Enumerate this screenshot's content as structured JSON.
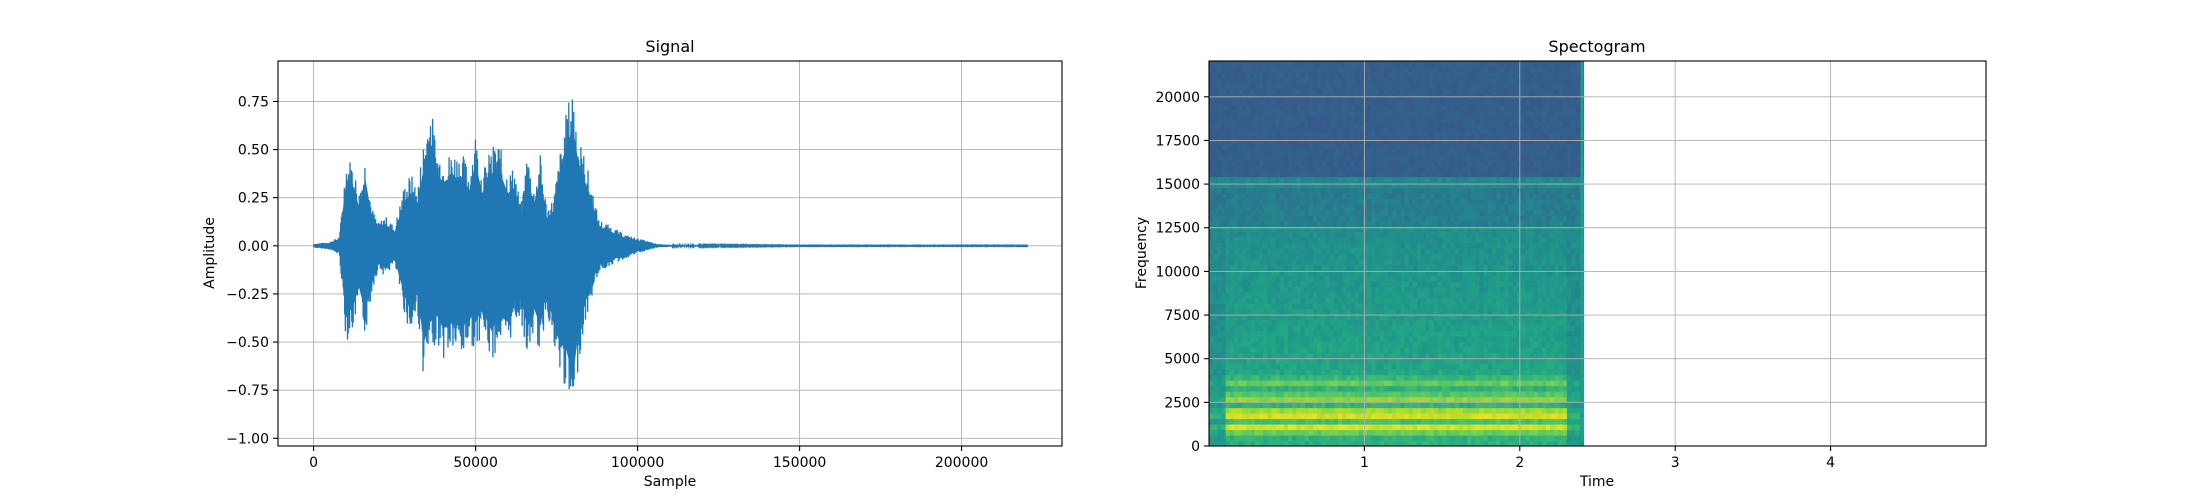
{
  "chart_data": [
    {
      "type": "line",
      "title": "Signal",
      "xlabel": "Sample",
      "ylabel": "Amplitude",
      "xlim": [
        -11000,
        231000
      ],
      "ylim": [
        -1.04,
        0.96
      ],
      "x_ticks": [
        0,
        50000,
        100000,
        150000,
        200000
      ],
      "x_tick_labels": [
        "0",
        "50000",
        "100000",
        "150000",
        "200000"
      ],
      "y_ticks": [
        0.75,
        0.5,
        0.25,
        0.0,
        -0.25,
        -0.5,
        -0.75,
        -1.0
      ],
      "y_tick_labels": [
        "0.75",
        "0.50",
        "0.25",
        "0.00",
        "−0.25",
        "−0.50",
        "−0.75",
        "−1.00"
      ],
      "grid": true,
      "color": "#1f77b4",
      "series": [
        {
          "x": [
            0,
            5000,
            8000,
            10000,
            12000,
            14000,
            16000,
            18000,
            20000,
            22000,
            25000,
            28000,
            30000,
            32000,
            34000,
            36000,
            38000,
            40000,
            43000,
            46000,
            48000,
            50000,
            52000,
            55000,
            57000,
            60000,
            62000,
            64000,
            66000,
            68000,
            70000,
            72000,
            74000,
            76000,
            78000,
            80000,
            82000,
            84000,
            86000,
            88000,
            92000,
            96000,
            100000,
            104000,
            106000,
            110000,
            150000,
            200000,
            220500
          ],
          "upper": [
            0.01,
            0.02,
            0.05,
            0.46,
            0.45,
            0.28,
            0.48,
            0.2,
            0.12,
            0.16,
            0.1,
            0.32,
            0.38,
            0.3,
            0.56,
            0.76,
            0.52,
            0.46,
            0.5,
            0.48,
            0.4,
            0.6,
            0.38,
            0.52,
            0.55,
            0.38,
            0.42,
            0.2,
            0.5,
            0.3,
            0.48,
            0.2,
            0.25,
            0.48,
            0.7,
            0.86,
            0.56,
            0.45,
            0.3,
            0.14,
            0.1,
            0.06,
            0.04,
            0.02,
            0.01,
            0.005,
            0.002,
            0.002,
            0.002
          ],
          "lower": [
            -0.01,
            -0.02,
            -0.05,
            -0.5,
            -0.45,
            -0.3,
            -0.48,
            -0.24,
            -0.12,
            -0.16,
            -0.1,
            -0.35,
            -0.48,
            -0.34,
            -0.7,
            -0.55,
            -0.5,
            -0.6,
            -0.55,
            -0.6,
            -0.5,
            -0.55,
            -0.45,
            -0.62,
            -0.5,
            -0.55,
            -0.4,
            -0.38,
            -0.6,
            -0.45,
            -0.58,
            -0.32,
            -0.56,
            -0.7,
            -0.75,
            -0.95,
            -0.58,
            -0.4,
            -0.26,
            -0.14,
            -0.1,
            -0.07,
            -0.04,
            -0.02,
            -0.01,
            -0.005,
            -0.002,
            -0.002,
            -0.002
          ]
        }
      ]
    },
    {
      "type": "heatmap",
      "title": "Spectogram",
      "xlabel": "Time",
      "ylabel": "Frequency",
      "xlim": [
        0,
        5.0
      ],
      "ylim": [
        0,
        22050
      ],
      "data_time_end": 2.41,
      "x_ticks": [
        1,
        2,
        3,
        4
      ],
      "x_tick_labels": [
        "1",
        "2",
        "3",
        "4"
      ],
      "y_ticks": [
        0,
        2500,
        5000,
        7500,
        10000,
        12500,
        15000,
        17500,
        20000
      ],
      "y_tick_labels": [
        "0",
        "2500",
        "5000",
        "7500",
        "10000",
        "12500",
        "15000",
        "17500",
        "20000"
      ],
      "grid": true,
      "colormap": "viridis",
      "cutoff_frequency": 15300,
      "bright_band_frequencies": [
        1700,
        900,
        2600,
        3500
      ]
    }
  ]
}
